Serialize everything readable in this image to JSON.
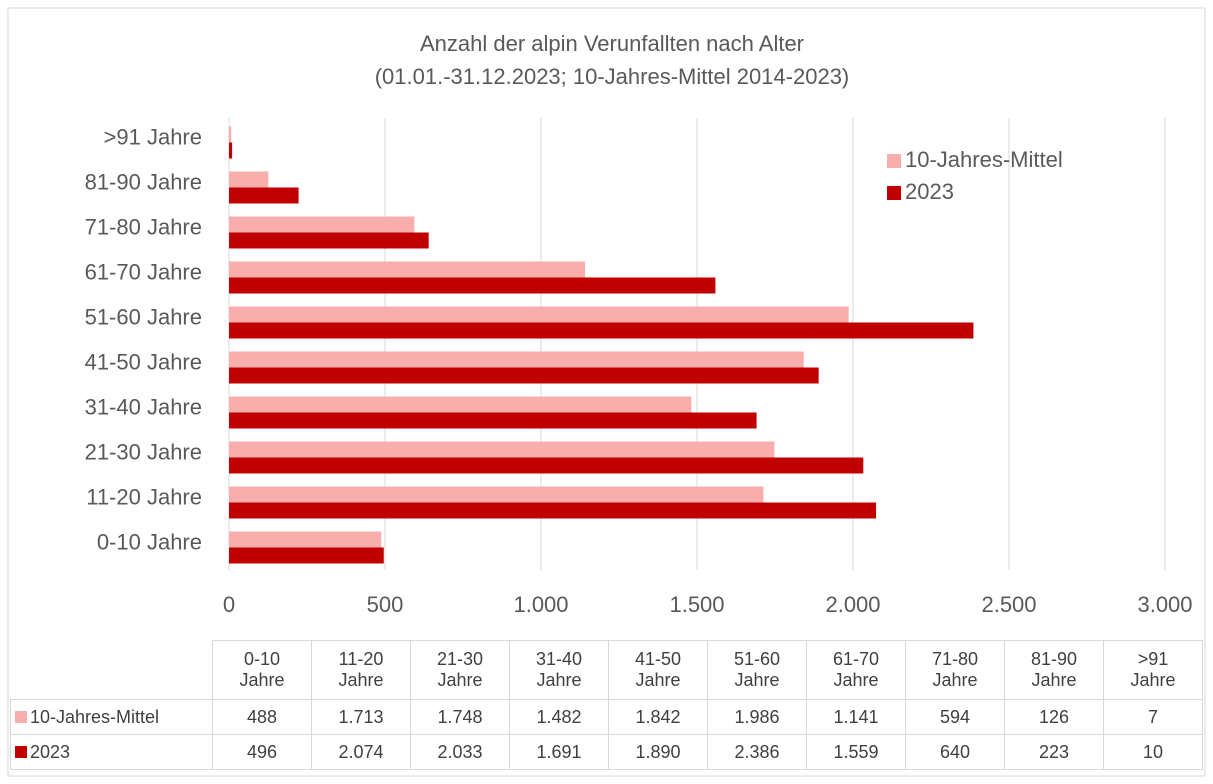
{
  "chart_data": {
    "type": "hbar",
    "title": "Anzahl der alpin Verunfallten nach Alter",
    "subtitle": "(01.01.-31.12.2023; 10-Jahres-Mittel 2014-2023)",
    "categories": [
      "0-10 Jahre",
      "11-20 Jahre",
      "21-30 Jahre",
      "31-40 Jahre",
      "41-50 Jahre",
      "51-60 Jahre",
      "61-70 Jahre",
      "71-80 Jahre",
      "81-90 Jahre",
      ">91 Jahre"
    ],
    "series": [
      {
        "name": "10-Jahres-Mittel",
        "color": "#f7aeac",
        "values": [
          488,
          1713,
          1748,
          1482,
          1842,
          1986,
          1141,
          594,
          126,
          7
        ],
        "value_labels": [
          "488",
          "1.713",
          "1.748",
          "1.482",
          "1.842",
          "1.986",
          "1.141",
          "594",
          "126",
          "7"
        ]
      },
      {
        "name": "2023",
        "color": "#c00000",
        "values": [
          496,
          2074,
          2033,
          1691,
          1890,
          2386,
          1559,
          640,
          223,
          10
        ],
        "value_labels": [
          "496",
          "2.074",
          "2.033",
          "1.691",
          "1.890",
          "2.386",
          "1.559",
          "640",
          "223",
          "10"
        ]
      }
    ],
    "xlim": [
      0,
      3000
    ],
    "xticks": [
      0,
      500,
      {
        "value": 1000,
        "label": "1.000"
      },
      {
        "value": 1500,
        "label": "1.500"
      },
      {
        "value": 2000,
        "label": "2.000"
      },
      {
        "value": 2500,
        "label": "2.500"
      },
      {
        "value": 3000,
        "label": "3.000"
      }
    ],
    "grid": true,
    "legend": "upper right"
  }
}
